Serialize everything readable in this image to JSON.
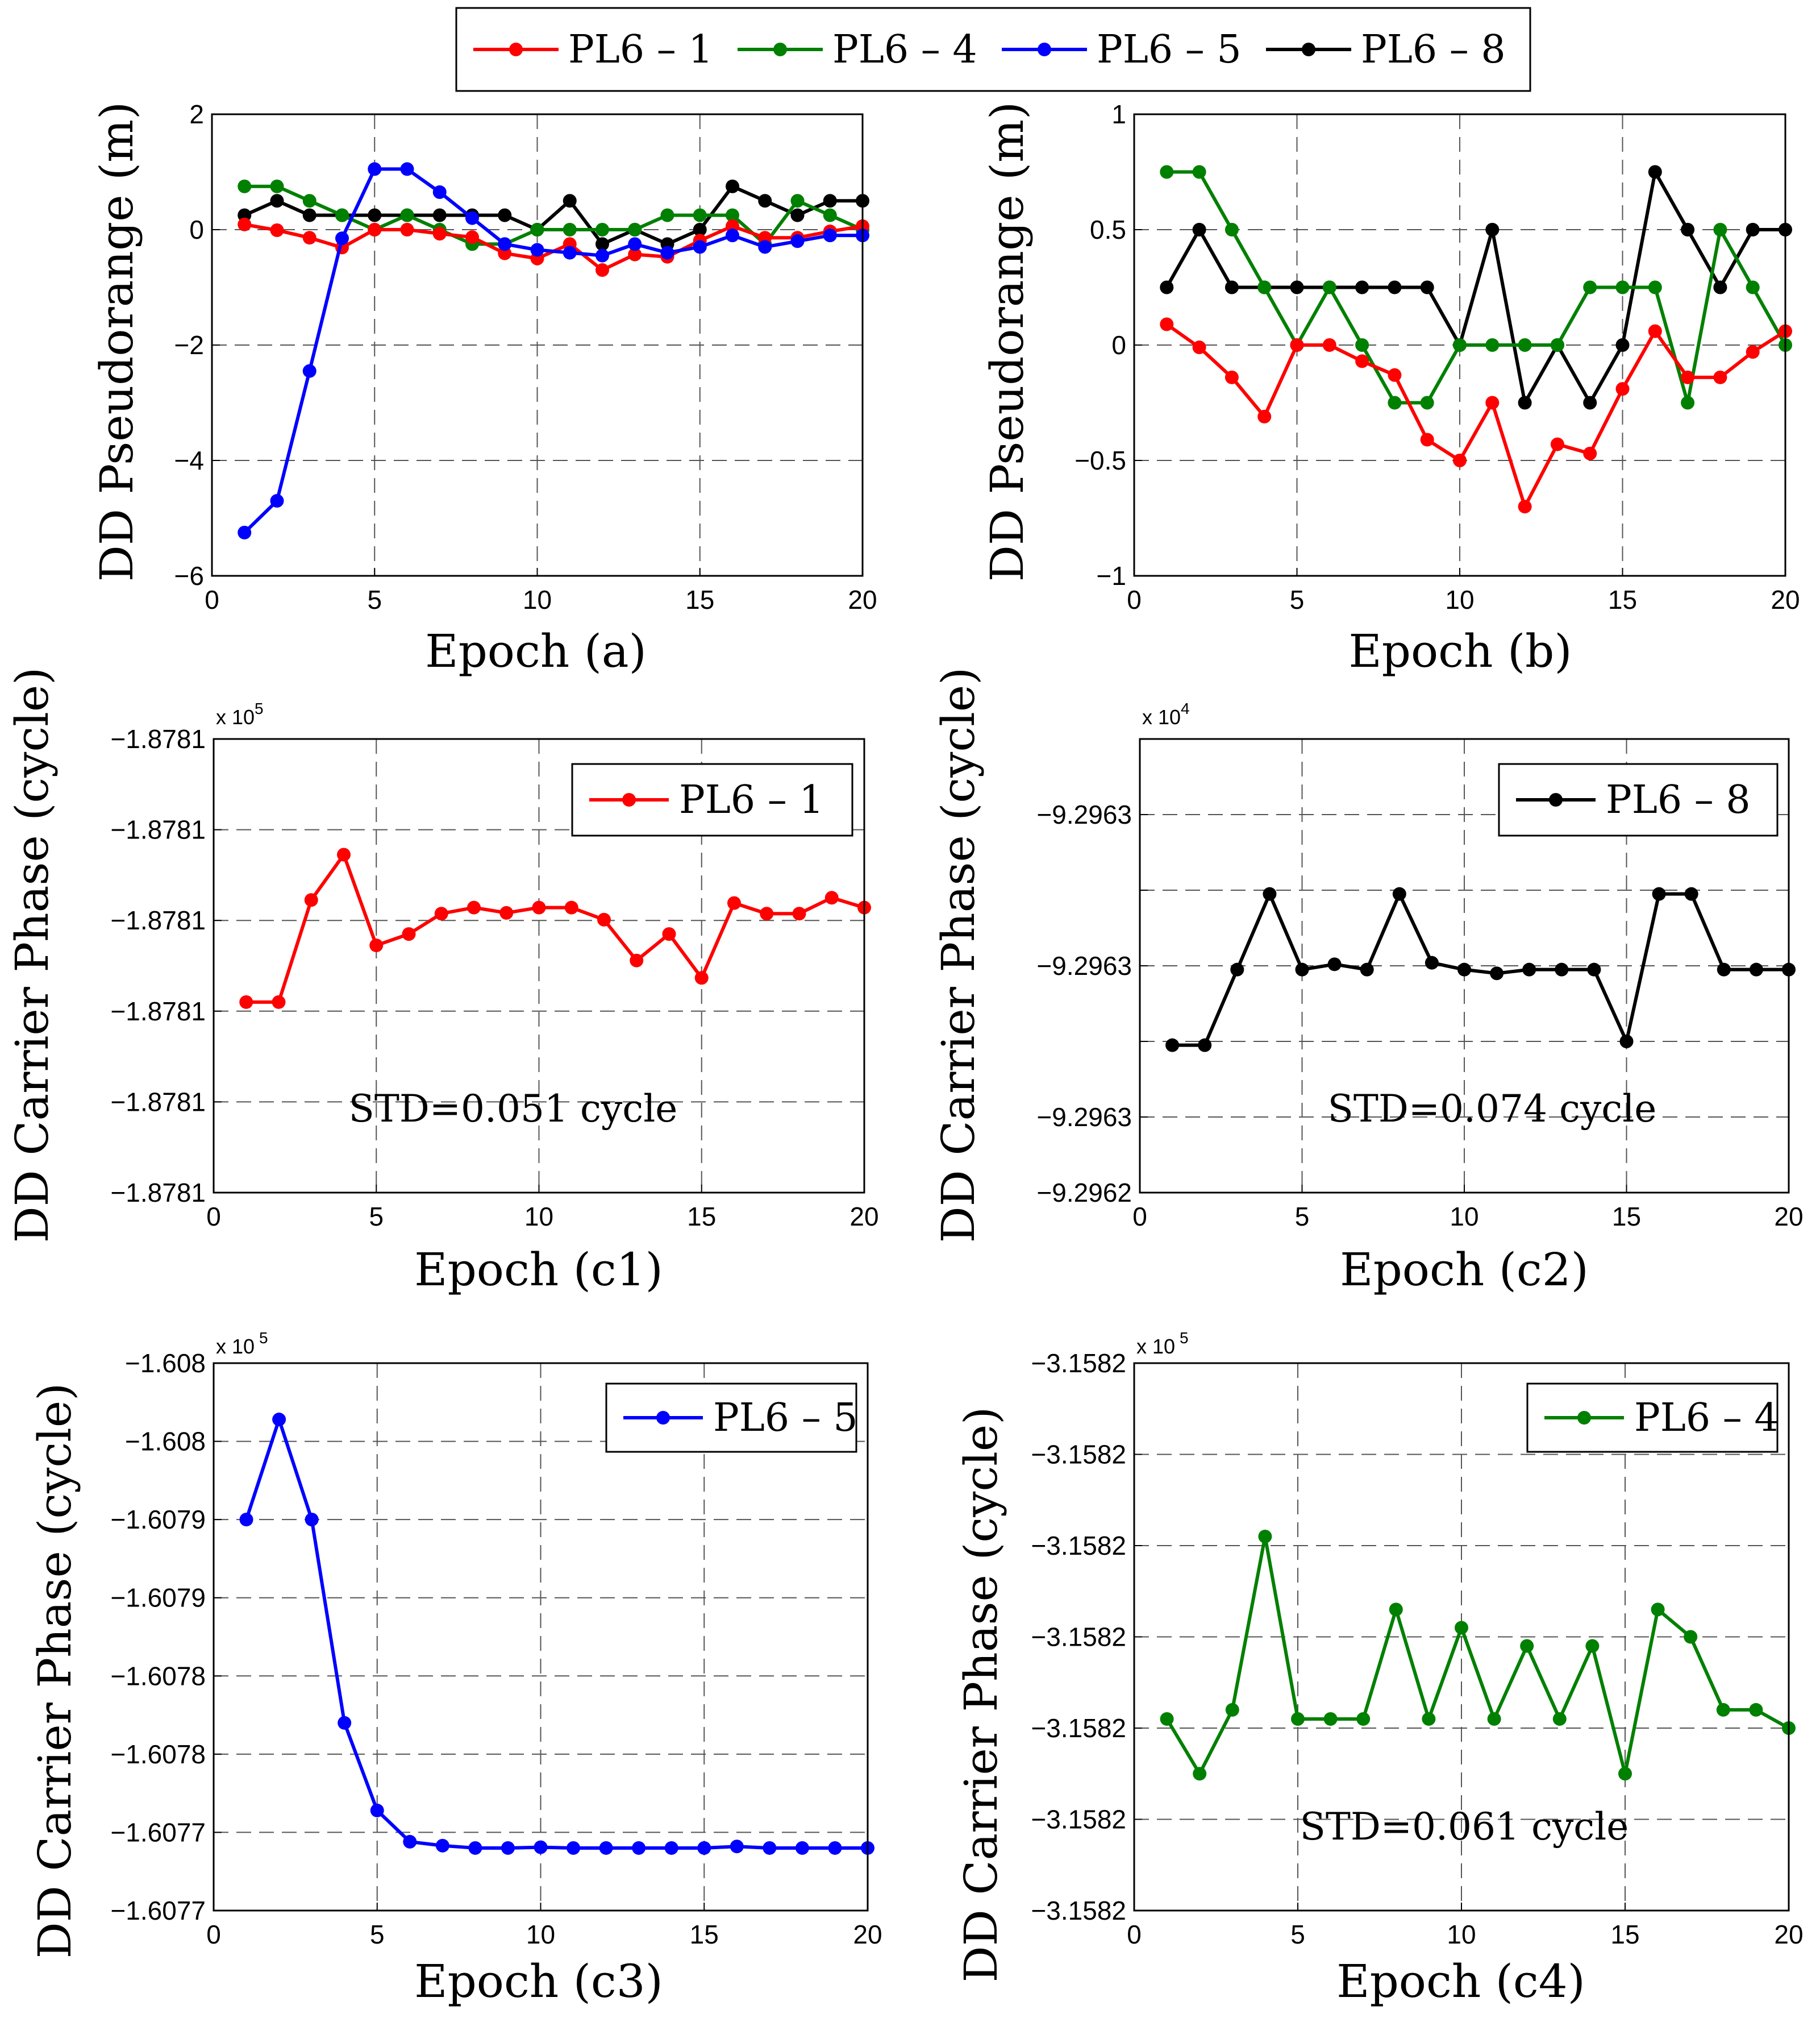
{
  "legend": {
    "entries": [
      {
        "label": "PL6 – 1",
        "color": "#ff0000"
      },
      {
        "label": "PL6 – 4",
        "color": "#008000"
      },
      {
        "label": "PL6 – 5",
        "color": "#0000ff"
      },
      {
        "label": "PL6 – 8",
        "color": "#000000"
      }
    ]
  },
  "chart_data": [
    {
      "id": "a",
      "type": "line",
      "xlabel": "Epoch (a)",
      "ylabel": "DD Pseudorange (m)",
      "xlim": [
        0,
        20
      ],
      "ylim": [
        -6,
        2
      ],
      "xticks": [
        "0",
        "5",
        "10",
        "15",
        "20"
      ],
      "yticks": [
        "2",
        "0",
        "−2",
        "−4",
        "−6"
      ],
      "x": [
        1,
        2,
        3,
        4,
        5,
        6,
        7,
        8,
        9,
        10,
        11,
        12,
        13,
        14,
        15,
        16,
        17,
        18,
        19,
        20
      ],
      "series": [
        {
          "name": "PL6 – 8",
          "color": "#000000",
          "values": [
            0.25,
            0.5,
            0.25,
            0.25,
            0.25,
            0.25,
            0.25,
            0.25,
            0.25,
            0,
            0.5,
            -0.25,
            0,
            -0.25,
            0,
            0.75,
            0.5,
            0.25,
            0.5,
            0.5
          ]
        },
        {
          "name": "PL6 – 4",
          "color": "#008000",
          "values": [
            0.75,
            0.75,
            0.5,
            0.25,
            0,
            0.25,
            0,
            -0.25,
            -0.25,
            0,
            0,
            0,
            0,
            0.25,
            0.25,
            0.25,
            -0.25,
            0.5,
            0.25,
            0
          ]
        },
        {
          "name": "PL6 – 1",
          "color": "#ff0000",
          "values": [
            0.09,
            -0.01,
            -0.14,
            -0.31,
            0,
            0,
            -0.07,
            -0.13,
            -0.41,
            -0.5,
            -0.25,
            -0.7,
            -0.43,
            -0.47,
            -0.19,
            0.06,
            -0.14,
            -0.14,
            -0.03,
            0.06
          ]
        },
        {
          "name": "PL6 – 5",
          "color": "#0000ff",
          "values": [
            -5.25,
            -4.7,
            -2.45,
            -0.15,
            1.05,
            1.05,
            0.65,
            0.2,
            -0.25,
            -0.35,
            -0.4,
            -0.45,
            -0.25,
            -0.4,
            -0.3,
            -0.1,
            -0.3,
            -0.2,
            -0.1,
            -0.1
          ]
        }
      ]
    },
    {
      "id": "b",
      "type": "line",
      "xlabel": "Epoch (b)",
      "ylabel": "DD Pseudorange (m)",
      "xlim": [
        0,
        20
      ],
      "ylim": [
        -1,
        1
      ],
      "xticks": [
        "0",
        "5",
        "10",
        "15",
        "20"
      ],
      "yticks": [
        "1",
        "0.5",
        "0",
        "−0.5",
        "−1"
      ],
      "x": [
        1,
        2,
        3,
        4,
        5,
        6,
        7,
        8,
        9,
        10,
        11,
        12,
        13,
        14,
        15,
        16,
        17,
        18,
        19,
        20
      ],
      "series": [
        {
          "name": "PL6 – 8",
          "color": "#000000",
          "values": [
            0.25,
            0.5,
            0.25,
            0.25,
            0.25,
            0.25,
            0.25,
            0.25,
            0.25,
            0,
            0.5,
            -0.25,
            0,
            -0.25,
            0,
            0.75,
            0.5,
            0.25,
            0.5,
            0.5
          ]
        },
        {
          "name": "PL6 – 4",
          "color": "#008000",
          "values": [
            0.75,
            0.75,
            0.5,
            0.25,
            0,
            0.25,
            0,
            -0.25,
            -0.25,
            0,
            0,
            0,
            0,
            0.25,
            0.25,
            0.25,
            -0.25,
            0.5,
            0.25,
            0
          ]
        },
        {
          "name": "PL6 – 1",
          "color": "#ff0000",
          "values": [
            0.09,
            -0.01,
            -0.14,
            -0.31,
            0,
            0,
            -0.07,
            -0.13,
            -0.41,
            -0.5,
            -0.25,
            -0.7,
            -0.43,
            -0.47,
            -0.19,
            0.06,
            -0.14,
            -0.14,
            -0.03,
            0.06
          ]
        }
      ]
    },
    {
      "id": "c1",
      "type": "line",
      "xlabel": "Epoch (c1)",
      "ylabel": "DD Carrier Phase (cycle)",
      "exponent": "x 10",
      "exponent_power": "5",
      "xlim": [
        0,
        20
      ],
      "ylim": [
        0,
        6
      ],
      "xticks": [
        "0",
        "5",
        "10",
        "15",
        "20"
      ],
      "yticks": [
        "−1.8781",
        "−1.8781",
        "−1.8781",
        "−1.8781",
        "−1.8781",
        "−1.8781"
      ],
      "x": [
        1,
        2,
        3,
        4,
        5,
        6,
        7,
        8,
        9,
        10,
        11,
        12,
        13,
        14,
        15,
        16,
        17,
        18,
        19,
        20
      ],
      "series": [
        {
          "name": "PL6 – 1",
          "color": "#ff0000",
          "values": [
            2.52,
            2.52,
            3.87,
            4.47,
            3.27,
            3.42,
            3.69,
            3.77,
            3.7,
            3.77,
            3.77,
            3.61,
            3.07,
            3.42,
            2.84,
            3.83,
            3.69,
            3.69,
            3.9,
            3.77
          ]
        }
      ],
      "legend_label": "PL6 – 1",
      "annotation": "STD=0.051 cycle"
    },
    {
      "id": "c2",
      "type": "line",
      "xlabel": "Epoch (c2)",
      "ylabel": "DD Carrier Phase (cycle)",
      "exponent": "x 10",
      "exponent_power": "4",
      "xlim": [
        0,
        20
      ],
      "ylim": [
        0,
        6
      ],
      "xticks": [
        "0",
        "5",
        "10",
        "15",
        "20"
      ],
      "yticks": [
        "",
        "−9.2963",
        "",
        "−9.2963",
        "",
        "−9.2963",
        "−9.2962"
      ],
      "x": [
        1,
        2,
        3,
        4,
        5,
        6,
        7,
        8,
        9,
        10,
        11,
        12,
        13,
        14,
        15,
        16,
        17,
        18,
        19,
        20
      ],
      "series": [
        {
          "name": "PL6 – 8",
          "color": "#000000",
          "values": [
            1.95,
            1.95,
            2.95,
            3.95,
            2.95,
            3.02,
            2.95,
            3.95,
            3.04,
            2.95,
            2.9,
            2.95,
            2.95,
            2.95,
            2.0,
            3.95,
            3.95,
            2.95,
            2.95,
            2.95
          ]
        }
      ],
      "legend_label": "PL6 – 8",
      "annotation": "STD=0.074 cycle"
    },
    {
      "id": "c3",
      "type": "line",
      "xlabel": "Epoch (c3)",
      "ylabel": "DD Carrier Phase (cycle)",
      "exponent": "x 10",
      "exponent_power": "5",
      "xlim": [
        0,
        20
      ],
      "ylim": [
        0,
        7
      ],
      "xticks": [
        "0",
        "5",
        "10",
        "15",
        "20"
      ],
      "yticks": [
        "−1.608",
        "−1.608",
        "−1.6079",
        "−1.6079",
        "−1.6078",
        "−1.6078",
        "−1.6077",
        "−1.6077"
      ],
      "x": [
        1,
        2,
        3,
        4,
        5,
        6,
        7,
        8,
        9,
        10,
        11,
        12,
        13,
        14,
        15,
        16,
        17,
        18,
        19,
        20
      ],
      "series": [
        {
          "name": "PL6 – 5",
          "color": "#0000ff",
          "values": [
            5.0,
            6.28,
            5.0,
            2.4,
            1.28,
            0.88,
            0.83,
            0.8,
            0.8,
            0.81,
            0.8,
            0.8,
            0.8,
            0.8,
            0.8,
            0.82,
            0.8,
            0.8,
            0.8,
            0.8
          ]
        }
      ],
      "legend_label": "PL6 – 5"
    },
    {
      "id": "c4",
      "type": "line",
      "xlabel": "Epoch (c4)",
      "ylabel": "DD Carrier Phase (cycle)",
      "exponent": "x 10",
      "exponent_power": "5",
      "xlim": [
        0,
        20
      ],
      "ylim": [
        0,
        6
      ],
      "xticks": [
        "0",
        "5",
        "10",
        "15",
        "20"
      ],
      "yticks": [
        "−3.1582",
        "−3.1582",
        "−3.1582",
        "−3.1582",
        "−3.1582",
        "−3.1582",
        "−3.1582"
      ],
      "x": [
        1,
        2,
        3,
        4,
        5,
        6,
        7,
        8,
        9,
        10,
        11,
        12,
        13,
        14,
        15,
        16,
        17,
        18,
        19,
        20
      ],
      "series": [
        {
          "name": "PL6 – 4",
          "color": "#008000",
          "values": [
            2.1,
            1.5,
            2.2,
            4.1,
            2.1,
            2.1,
            2.1,
            3.3,
            2.1,
            3.1,
            2.1,
            2.9,
            2.1,
            2.9,
            1.5,
            3.3,
            3.0,
            2.2,
            2.2,
            2.0
          ]
        }
      ],
      "legend_label": "PL6 – 4",
      "annotation": "STD=0.061 cycle"
    }
  ]
}
